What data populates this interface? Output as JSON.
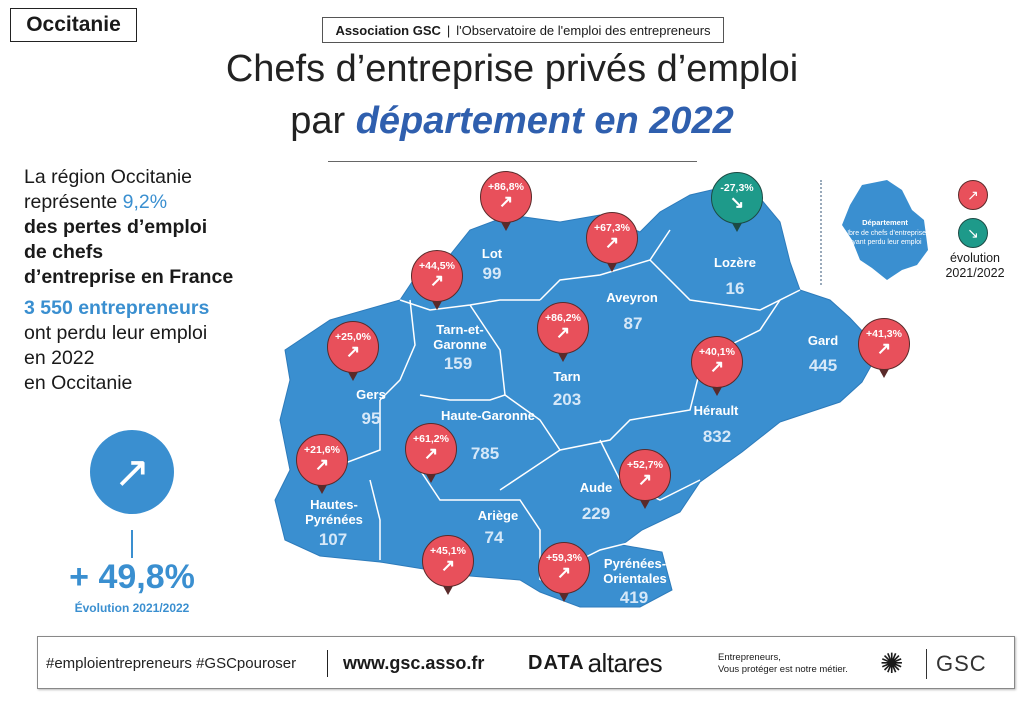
{
  "region_tag": "Occitanie",
  "header": {
    "org": "Association GSC",
    "separator": "|",
    "subtitle": "l'Observatoire de l'emploi des entrepreneurs"
  },
  "title": {
    "line1": "Chefs d’entreprise privés d’emploi",
    "line2_prefix": "par ",
    "line2_highlight": "département en 2022"
  },
  "intro": {
    "l1": "La région Occitanie",
    "l2": "représente ",
    "pct": "9,2%",
    "l3": "des pertes d’emploi",
    "l4": "de chefs",
    "l5": "d’entreprise en France",
    "count": "3 550 entrepreneurs",
    "l6": "ont perdu leur emploi",
    "l7": "en 2022",
    "l8": "en Occitanie"
  },
  "summary": {
    "icon": "arrow-up-right-icon",
    "value": "+ 49,8%",
    "label": "Évolution 2021/2022"
  },
  "colors": {
    "map": "#3a8fd0",
    "up": "#e8505b",
    "down": "#1e9a8a",
    "title_accent": "#2f5fae"
  },
  "departments": [
    {
      "name": "Lot",
      "value": "99",
      "evolution": "+86,8%",
      "trend": "up"
    },
    {
      "name": "Aveyron",
      "value": "87",
      "evolution": "+67,3%",
      "trend": "up"
    },
    {
      "name": "Lozère",
      "value": "16",
      "evolution": "-27,3%",
      "trend": "down"
    },
    {
      "name": "Tarn-et-Garonne",
      "value": "159",
      "evolution": "+44,5%",
      "trend": "up"
    },
    {
      "name": "Tarn",
      "value": "203",
      "evolution": "+86,2%",
      "trend": "up"
    },
    {
      "name": "Gers",
      "value": "95",
      "evolution": "+25,0%",
      "trend": "up"
    },
    {
      "name": "Hérault",
      "value": "832",
      "evolution": "+40,1%",
      "trend": "up"
    },
    {
      "name": "Gard",
      "value": "445",
      "evolution": "+41,3%",
      "trend": "up"
    },
    {
      "name": "Haute-Garonne",
      "value": "785",
      "evolution": "+61,2%",
      "trend": "up"
    },
    {
      "name": "Hautes-Pyrénées",
      "value": "107",
      "evolution": "+21,6%",
      "trend": "up"
    },
    {
      "name": "Ariège",
      "value": "74",
      "evolution": "+45,1%",
      "trend": "up"
    },
    {
      "name": "Aude",
      "value": "229",
      "evolution": "+52,7%",
      "trend": "up"
    },
    {
      "name": "Pyrénées-Orientales",
      "value": "419",
      "evolution": "+59,3%",
      "trend": "up"
    }
  ],
  "legend": {
    "dept_title": "Département",
    "dept_desc": "Nbre de chefs d’entreprise ayant perdu leur emploi",
    "evolution_label": "évolution",
    "period": "2021/2022"
  },
  "footer": {
    "hashtags": "#emploientrepreneurs #GSCpouroser",
    "website": "www.gsc.asso.fr",
    "partner_prefix": "DATA",
    "partner": "altares",
    "tagline1": "Entrepreneurs,",
    "tagline2": "Vous protéger est notre métier.",
    "brand": "GSC"
  }
}
